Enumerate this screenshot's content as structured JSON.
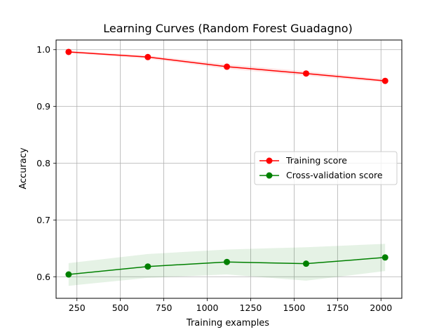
{
  "chart_data": {
    "type": "line",
    "title": "Learning Curves (Random Forest Guadagno)",
    "xlabel": "Training examples",
    "ylabel": "Accuracy",
    "xlim": [
      130,
      2120
    ],
    "ylim": [
      0.562,
      1.017
    ],
    "x_ticks": [
      250,
      500,
      750,
      1000,
      1250,
      1500,
      1750,
      2000
    ],
    "y_ticks": [
      0.6,
      0.7,
      0.8,
      0.9,
      1.0
    ],
    "x_tick_labels": [
      "250",
      "500",
      "750",
      "1000",
      "1250",
      "1500",
      "1750",
      "2000"
    ],
    "y_tick_labels": [
      "0.6",
      "0.7",
      "0.8",
      "0.9",
      "1.0"
    ],
    "grid": true,
    "legend_position": "center-right",
    "x": [
      202,
      658,
      1113,
      1569,
      2024
    ],
    "series": [
      {
        "name": "Training score",
        "color": "#ff0000",
        "marker": "circle",
        "values": [
          0.996,
          0.987,
          0.97,
          0.958,
          0.945
        ],
        "band_lower": [
          0.994,
          0.984,
          0.966,
          0.954,
          0.942
        ],
        "band_upper": [
          0.998,
          0.99,
          0.974,
          0.962,
          0.948
        ]
      },
      {
        "name": "Cross-validation score",
        "color": "#008000",
        "marker": "circle",
        "values": [
          0.604,
          0.618,
          0.626,
          0.623,
          0.634
        ],
        "band_lower": [
          0.584,
          0.598,
          0.604,
          0.593,
          0.61
        ],
        "band_upper": [
          0.624,
          0.64,
          0.648,
          0.652,
          0.658
        ]
      }
    ]
  }
}
